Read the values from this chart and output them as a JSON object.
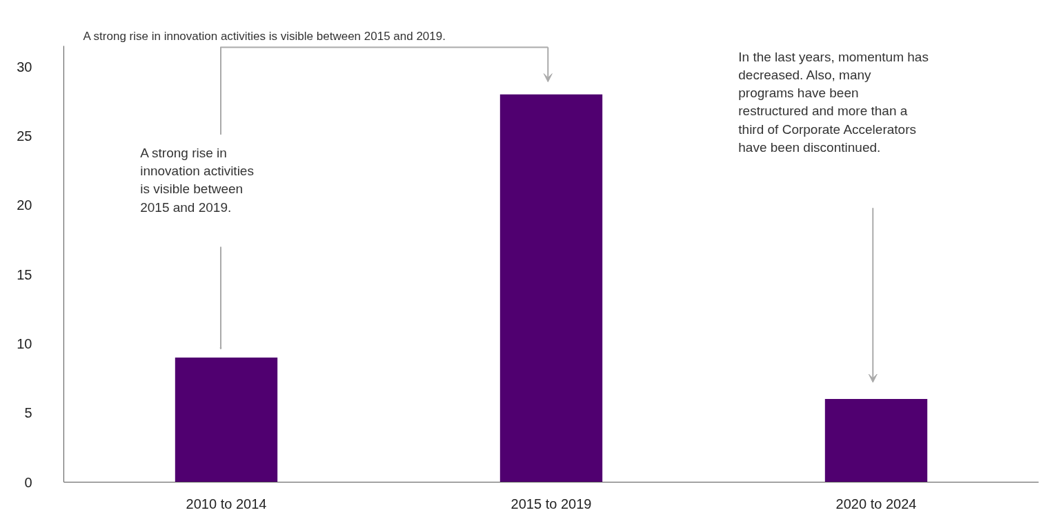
{
  "chart_data": {
    "type": "bar",
    "title": "A strong rise in innovation activities is visible between 2015 and 2019.",
    "categories": [
      "2010 to 2014",
      "2015 to 2019",
      "2020 to 2024"
    ],
    "values": [
      9,
      28,
      6
    ],
    "color": "#500070",
    "ylim": [
      0,
      31.5
    ],
    "yticks": [
      0,
      5,
      10,
      15,
      20,
      25,
      30
    ],
    "grid": false,
    "annotations": [
      "A strong rise in\ninnovation activities\nis visible between\n2015 and 2019.",
      "In the last years, momentum has\ndecreased. Also, many\nprograms have been\nrestructured and more than a\nthird of Corporate Accelerators\nhave been discontinued."
    ]
  }
}
